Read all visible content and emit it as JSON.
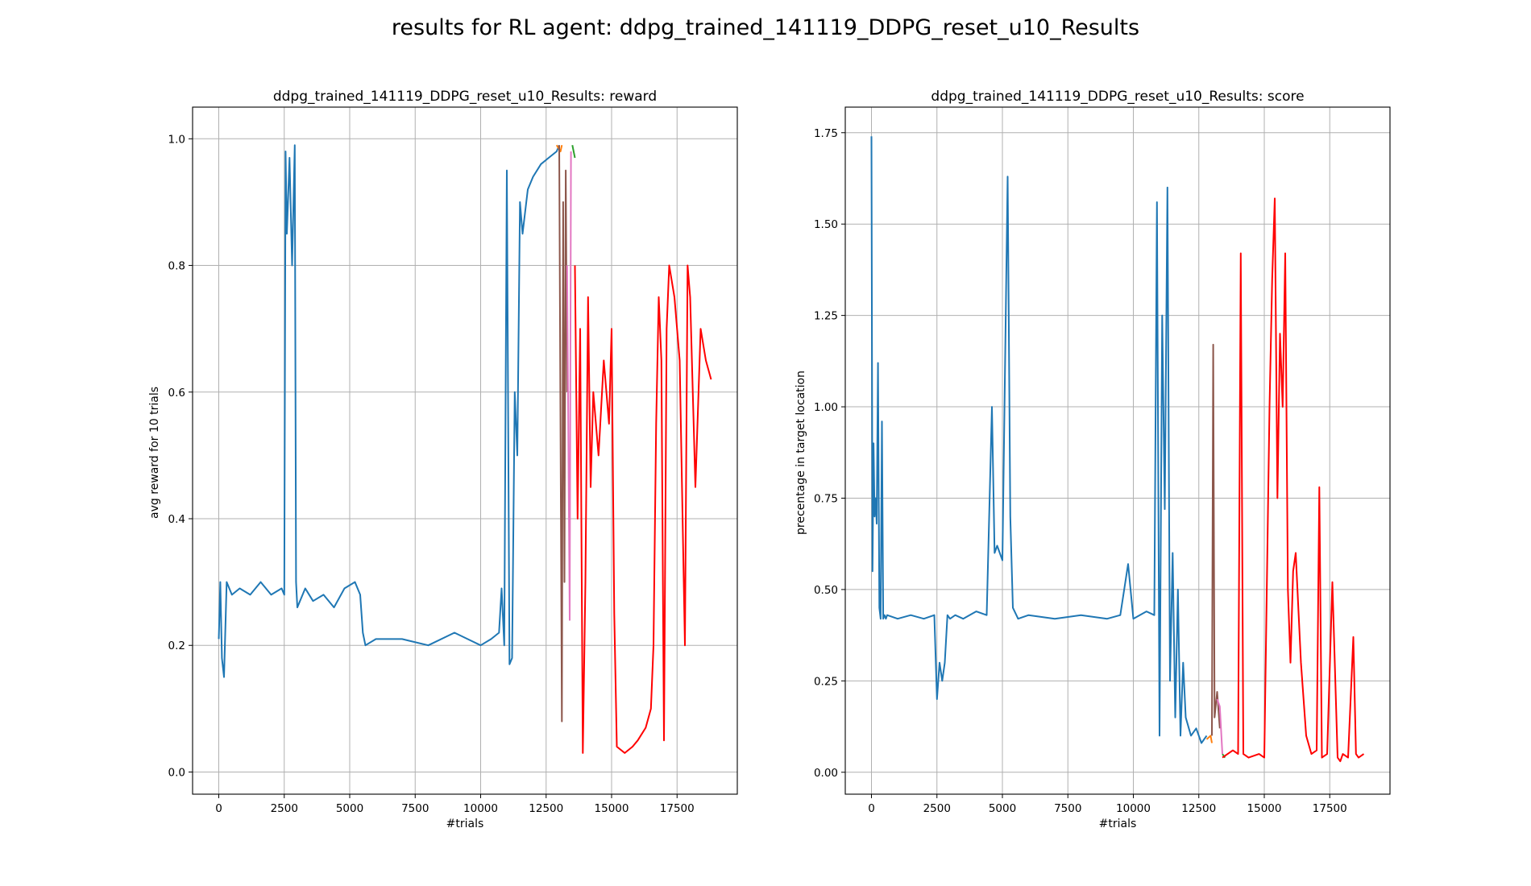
{
  "suptitle": "results for RL agent: ddpg_trained_141119_DDPG_reset_u10_Results",
  "chart_data": [
    {
      "type": "line",
      "title": "ddpg_trained_141119_DDPG_reset_u10_Results: reward",
      "xlabel": "#trials",
      "ylabel": "avg reward for 10 trials",
      "xlim": [
        -1000,
        19800
      ],
      "ylim": [
        -0.035,
        1.05
      ],
      "xticks": [
        0,
        2500,
        5000,
        7500,
        10000,
        12500,
        15000,
        17500
      ],
      "xtick_labels": [
        "0",
        "2500",
        "5000",
        "7500",
        "10000",
        "12500",
        "15000",
        "17500"
      ],
      "yticks": [
        0.0,
        0.2,
        0.4,
        0.6,
        0.8,
        1.0
      ],
      "ytick_labels": [
        "0.0",
        "0.2",
        "0.4",
        "0.6",
        "0.8",
        "1.0"
      ],
      "grid": true,
      "series": [
        {
          "color": "#1f77b4",
          "x": [
            0,
            60,
            120,
            200,
            300,
            500,
            800,
            1200,
            1600,
            2000,
            2400,
            2500,
            2550,
            2600,
            2700,
            2800,
            2900,
            2950,
            3000,
            3300,
            3600,
            4000,
            4400,
            4800,
            5200,
            5400,
            5500,
            5600,
            6000,
            7000,
            8000,
            9000,
            9500,
            10000,
            10400,
            10700,
            10800,
            10900,
            11000,
            11100,
            11200,
            11300,
            11400,
            11500,
            11600,
            11800,
            12000,
            12300,
            12600,
            12900,
            13000
          ],
          "y": [
            0.21,
            0.3,
            0.18,
            0.15,
            0.3,
            0.28,
            0.29,
            0.28,
            0.3,
            0.28,
            0.29,
            0.28,
            0.98,
            0.85,
            0.97,
            0.8,
            0.99,
            0.3,
            0.26,
            0.29,
            0.27,
            0.28,
            0.26,
            0.29,
            0.3,
            0.28,
            0.22,
            0.2,
            0.21,
            0.21,
            0.2,
            0.22,
            0.21,
            0.2,
            0.21,
            0.22,
            0.29,
            0.2,
            0.95,
            0.17,
            0.18,
            0.6,
            0.5,
            0.9,
            0.85,
            0.92,
            0.94,
            0.96,
            0.97,
            0.98,
            0.99
          ]
        },
        {
          "color": "#ff7f0e",
          "x": [
            12900,
            13050,
            13100
          ],
          "y": [
            0.99,
            0.98,
            0.99
          ]
        },
        {
          "color": "#2ca02c",
          "x": [
            13500,
            13600
          ],
          "y": [
            0.99,
            0.97
          ]
        },
        {
          "color": "#8c564b",
          "x": [
            13000,
            13100,
            13150,
            13200,
            13250,
            13300
          ],
          "y": [
            0.99,
            0.08,
            0.9,
            0.3,
            0.95,
            0.6
          ]
        },
        {
          "color": "#e377c2",
          "x": [
            13300,
            13400,
            13450
          ],
          "y": [
            0.8,
            0.24,
            0.98
          ]
        },
        {
          "color": "#ff0000",
          "x": [
            13600,
            13700,
            13800,
            13900,
            14000,
            14100,
            14200,
            14300,
            14500,
            14700,
            14900,
            15000,
            15100,
            15200,
            15500,
            15800,
            16000,
            16300,
            16500,
            16600,
            16700,
            16800,
            16900,
            17000,
            17100,
            17200,
            17400,
            17600,
            17800,
            17900,
            18000,
            18200,
            18400,
            18600,
            18800
          ],
          "y": [
            0.8,
            0.4,
            0.7,
            0.03,
            0.3,
            0.75,
            0.45,
            0.6,
            0.5,
            0.65,
            0.55,
            0.7,
            0.25,
            0.04,
            0.03,
            0.04,
            0.05,
            0.07,
            0.1,
            0.2,
            0.55,
            0.75,
            0.65,
            0.05,
            0.7,
            0.8,
            0.75,
            0.65,
            0.2,
            0.8,
            0.75,
            0.45,
            0.7,
            0.65,
            0.62
          ]
        }
      ]
    },
    {
      "type": "line",
      "title": "ddpg_trained_141119_DDPG_reset_u10_Results: score",
      "xlabel": "#trials",
      "ylabel": "precentage in target location",
      "xlim": [
        -1000,
        19800
      ],
      "ylim": [
        -0.06,
        1.82
      ],
      "xticks": [
        0,
        2500,
        5000,
        7500,
        10000,
        12500,
        15000,
        17500
      ],
      "xtick_labels": [
        "0",
        "2500",
        "5000",
        "7500",
        "10000",
        "12500",
        "15000",
        "17500"
      ],
      "yticks": [
        0.0,
        0.25,
        0.5,
        0.75,
        1.0,
        1.25,
        1.5,
        1.75
      ],
      "ytick_labels": [
        "0.00",
        "0.25",
        "0.50",
        "0.75",
        "1.00",
        "1.25",
        "1.50",
        "1.75"
      ],
      "grid": true,
      "series": [
        {
          "color": "#1f77b4",
          "x": [
            0,
            40,
            80,
            120,
            160,
            200,
            250,
            300,
            350,
            400,
            450,
            500,
            550,
            600,
            1000,
            1500,
            2000,
            2400,
            2500,
            2600,
            2700,
            2800,
            2900,
            3000,
            3200,
            3500,
            4000,
            4400,
            4600,
            4700,
            4800,
            5000,
            5200,
            5300,
            5400,
            5600,
            6000,
            7000,
            8000,
            9000,
            9500,
            9800,
            10000,
            10500,
            10800,
            10900,
            11000,
            11100,
            11200,
            11300,
            11400,
            11500,
            11600,
            11700,
            11800,
            11900,
            12000,
            12200,
            12400,
            12600,
            12800
          ],
          "y": [
            1.74,
            0.55,
            0.9,
            0.7,
            0.75,
            0.68,
            1.12,
            0.45,
            0.42,
            0.96,
            0.42,
            0.43,
            0.42,
            0.43,
            0.42,
            0.43,
            0.42,
            0.43,
            0.2,
            0.3,
            0.25,
            0.3,
            0.43,
            0.42,
            0.43,
            0.42,
            0.44,
            0.43,
            1.0,
            0.6,
            0.62,
            0.58,
            1.63,
            0.7,
            0.45,
            0.42,
            0.43,
            0.42,
            0.43,
            0.42,
            0.43,
            0.57,
            0.42,
            0.44,
            0.43,
            1.56,
            0.1,
            1.25,
            0.72,
            1.6,
            0.25,
            0.6,
            0.15,
            0.5,
            0.1,
            0.3,
            0.15,
            0.1,
            0.12,
            0.08,
            0.1
          ]
        },
        {
          "color": "#ff7f0e",
          "x": [
            12800,
            12950,
            13000
          ],
          "y": [
            0.09,
            0.1,
            0.08
          ]
        },
        {
          "color": "#2ca02c",
          "x": [
            13400,
            13500
          ],
          "y": [
            0.05,
            0.04
          ]
        },
        {
          "color": "#8c564b",
          "x": [
            13000,
            13050,
            13100,
            13200,
            13300
          ],
          "y": [
            0.1,
            1.17,
            0.15,
            0.22,
            0.12
          ]
        },
        {
          "color": "#e377c2",
          "x": [
            13200,
            13300,
            13400
          ],
          "y": [
            0.2,
            0.18,
            0.05
          ]
        },
        {
          "color": "#ff0000",
          "x": [
            13400,
            13600,
            13800,
            14000,
            14100,
            14200,
            14400,
            14800,
            15000,
            15200,
            15300,
            15400,
            15500,
            15600,
            15700,
            15800,
            15900,
            16000,
            16100,
            16200,
            16400,
            16600,
            16800,
            17000,
            17100,
            17200,
            17400,
            17600,
            17800,
            17900,
            18000,
            18200,
            18400,
            18500,
            18600,
            18800
          ],
          "y": [
            0.04,
            0.05,
            0.06,
            0.05,
            1.42,
            0.05,
            0.04,
            0.05,
            0.04,
            1.0,
            1.35,
            1.57,
            0.75,
            1.2,
            1.0,
            1.42,
            0.5,
            0.3,
            0.55,
            0.6,
            0.3,
            0.1,
            0.05,
            0.06,
            0.78,
            0.04,
            0.05,
            0.52,
            0.04,
            0.03,
            0.05,
            0.04,
            0.37,
            0.05,
            0.04,
            0.05
          ]
        }
      ]
    }
  ]
}
